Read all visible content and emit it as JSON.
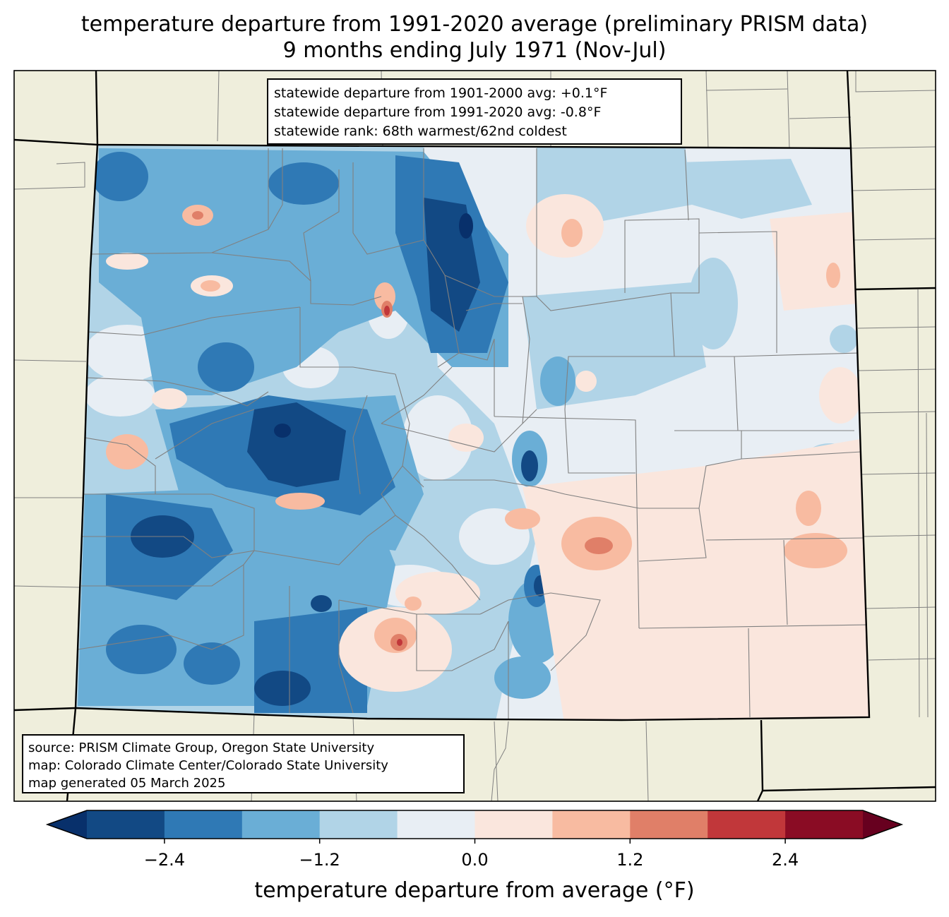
{
  "title": {
    "line1": "temperature departure from 1991-2020 average (preliminary PRISM data)",
    "line2": "9 months ending July 1971 (Nov-Jul)"
  },
  "stats": {
    "line1": "statewide departure from 1901-2000 avg: +0.1°F",
    "line2": "statewide departure from 1991-2020 avg: -0.8°F",
    "line3": "statewide rank: 68th warmest/62nd coldest"
  },
  "source": {
    "line1": "source: PRISM Climate Group, Oregon State University",
    "line2": "map: Colorado Climate Center/Colorado State University",
    "line3": "map generated 05 March 2025"
  },
  "colorbar": {
    "label": "temperature departure from average (°F)",
    "ticks": [
      {
        "value": -2.4,
        "text": "−2.4"
      },
      {
        "value": -1.2,
        "text": "−1.2"
      },
      {
        "value": 0.0,
        "text": "0.0"
      },
      {
        "value": 1.2,
        "text": "1.2"
      },
      {
        "value": 2.4,
        "text": "2.4"
      }
    ],
    "bounds": [
      -3.0,
      -2.4,
      -1.8,
      -1.2,
      -0.6,
      0.0,
      0.6,
      1.2,
      1.8,
      2.4,
      3.0
    ],
    "colors": [
      "#08306b",
      "#124984",
      "#2f79b5",
      "#6aaed6",
      "#b1d4e7",
      "#e8eef4",
      "#fae6dd",
      "#f8bba1",
      "#e07f68",
      "#c1373a",
      "#8a0c24",
      "#67001f"
    ]
  },
  "map_style": {
    "background_land": "#efeedc",
    "state_border": "#000000",
    "county_border": "#808080"
  }
}
